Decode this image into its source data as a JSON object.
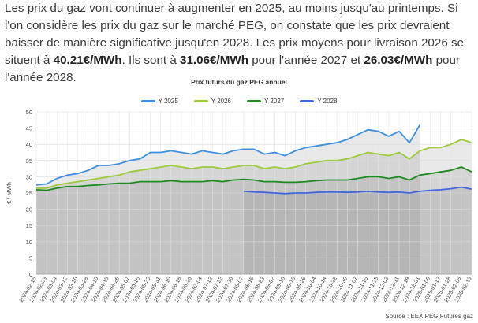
{
  "intro": {
    "p1": "Les prix du gaz vont continuer à augmenter en 2025, au moins jusqu'au printemps. Si l'on considère les prix du gaz sur le marché PEG, on constate que les prix devraient baisser de manière significative jusqu'en 2028. Les prix moyens pour livraison 2026 se situent à ",
    "v2026": "40.21€/MWh",
    "p2": ". Ils sont à ",
    "v2027": "31.06€/MWh",
    "p3": " pour l'année 2027 et ",
    "v2028": "26.03€/MWh",
    "p4": " pour l'année 2028."
  },
  "source": "Source : EEX PEG Futures gaz",
  "chart_data": {
    "type": "line",
    "title": "Prix futurs du gaz PEG annuel",
    "ylabel": "€ / MWh",
    "xlabel": "",
    "ylim": [
      0,
      50
    ],
    "yticks": [
      0,
      5,
      10,
      15,
      20,
      25,
      30,
      35,
      40,
      45,
      50
    ],
    "grid": true,
    "legend_position": "top-center",
    "x": [
      "2024-02-15",
      "2024-02-23",
      "2024-03-04",
      "2024-03-12",
      "2024-03-20",
      "2024-03-28",
      "2024-04-10",
      "2024-04-18",
      "2024-04-26",
      "2024-05-07",
      "2024-05-15",
      "2024-05-23",
      "2024-05-31",
      "2024-06-10",
      "2024-06-18",
      "2024-06-26",
      "2024-07-04",
      "2024-07-12",
      "2024-07-22",
      "2024-07-30",
      "2024-08-07",
      "2024-08-15",
      "2024-08-23",
      "2024-09-02",
      "2024-09-10",
      "2024-09-18",
      "2024-09-26",
      "2024-10-04",
      "2024-10-14",
      "2024-10-22",
      "2024-10-30",
      "2024-11-07",
      "2024-11-15",
      "2024-11-25",
      "2024-12-03",
      "2024-12-11",
      "2024-12-19",
      "2024-12-31",
      "2025-01-09",
      "2025-01-17",
      "2025-01-28",
      "2025-02-05",
      "2025-02-13"
    ],
    "series": [
      {
        "name": "Y 2025",
        "color": "#3d8fe0",
        "values": [
          27.5,
          27.8,
          29.5,
          30.5,
          31.0,
          32.0,
          33.5,
          33.5,
          34.0,
          35.0,
          35.5,
          37.5,
          37.5,
          38.0,
          37.5,
          37.0,
          38.0,
          37.5,
          37.0,
          38.0,
          38.5,
          38.5,
          37.0,
          37.5,
          36.5,
          38.0,
          39.0,
          39.5,
          40.0,
          40.5,
          41.5,
          43.0,
          44.5,
          44.0,
          42.5,
          44.0,
          40.5,
          46.0,
          null,
          null,
          null,
          null,
          null
        ]
      },
      {
        "name": "Y 2026",
        "color": "#9ccb3b",
        "values": [
          26.5,
          26.5,
          27.5,
          28.0,
          28.5,
          29.0,
          29.5,
          30.0,
          30.5,
          31.5,
          32.0,
          32.5,
          33.0,
          33.5,
          33.0,
          32.5,
          33.0,
          33.0,
          32.5,
          33.0,
          33.5,
          33.5,
          32.5,
          33.0,
          32.5,
          33.0,
          34.0,
          34.5,
          35.0,
          35.0,
          35.5,
          36.5,
          37.5,
          37.0,
          36.5,
          37.5,
          35.5,
          38.0,
          39.0,
          39.0,
          40.0,
          41.5,
          40.5
        ]
      },
      {
        "name": "Y 2027",
        "color": "#1f8a1f",
        "values": [
          26.0,
          25.8,
          26.5,
          27.0,
          27.0,
          27.3,
          27.5,
          27.8,
          28.0,
          28.0,
          28.5,
          28.5,
          28.5,
          28.8,
          28.5,
          28.5,
          28.5,
          28.8,
          28.5,
          29.0,
          29.2,
          29.0,
          28.5,
          28.5,
          28.3,
          28.3,
          28.5,
          28.8,
          29.0,
          29.0,
          29.0,
          29.5,
          30.0,
          30.0,
          29.5,
          30.0,
          29.0,
          30.5,
          31.0,
          31.5,
          32.0,
          33.0,
          31.5
        ]
      },
      {
        "name": "Y 2028",
        "color": "#4466dd",
        "values": [
          null,
          null,
          null,
          null,
          null,
          null,
          null,
          null,
          null,
          null,
          null,
          null,
          null,
          null,
          null,
          null,
          null,
          null,
          null,
          null,
          25.5,
          25.3,
          25.2,
          25.0,
          24.8,
          25.0,
          25.0,
          25.2,
          25.3,
          25.3,
          25.2,
          25.3,
          25.5,
          25.3,
          25.2,
          25.3,
          25.0,
          25.5,
          25.8,
          26.0,
          26.3,
          26.8,
          26.2
        ]
      }
    ]
  }
}
